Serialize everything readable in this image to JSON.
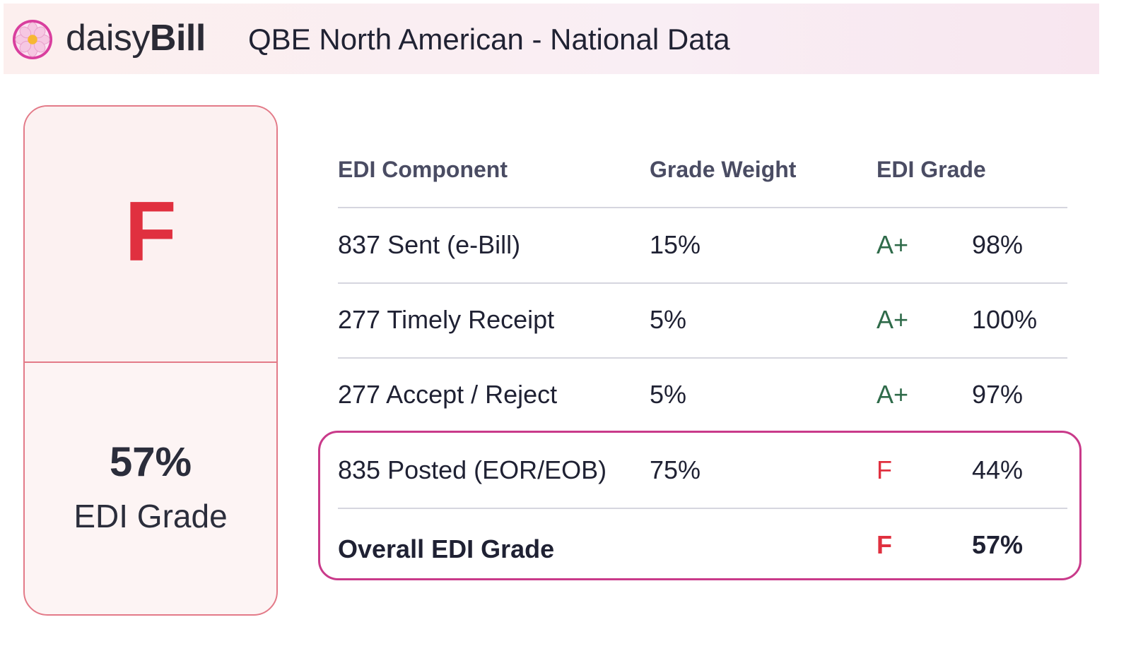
{
  "header": {
    "logo_light": "daisy",
    "logo_bold": "Bill",
    "title": "QBE North American - National Data"
  },
  "grade_card": {
    "letter": "F",
    "percent": "57%",
    "label": "EDI Grade"
  },
  "table": {
    "columns": [
      "EDI Component",
      "Grade Weight",
      "EDI Grade"
    ],
    "rows": [
      {
        "component": "837 Sent (e-Bill)",
        "weight": "15%",
        "letter": "A+",
        "percent": "98%",
        "status": "good"
      },
      {
        "component": "277 Timely Receipt",
        "weight": "5%",
        "letter": "A+",
        "percent": "100%",
        "status": "good"
      },
      {
        "component": "277 Accept / Reject",
        "weight": "5%",
        "letter": "A+",
        "percent": "97%",
        "status": "good"
      },
      {
        "component": "835 Posted (EOR/EOB)",
        "weight": "75%",
        "letter": "F",
        "percent": "44%",
        "status": "bad"
      }
    ],
    "overall": {
      "component": "Overall EDI Grade",
      "weight": "",
      "letter": "F",
      "percent": "57%"
    }
  },
  "colors": {
    "good_grade": "#2f6b4a",
    "bad_grade": "#e0303f",
    "highlight_border": "#c93a8a",
    "card_border": "#e37a88"
  },
  "icons": {
    "logo": "daisy-flower-icon"
  }
}
